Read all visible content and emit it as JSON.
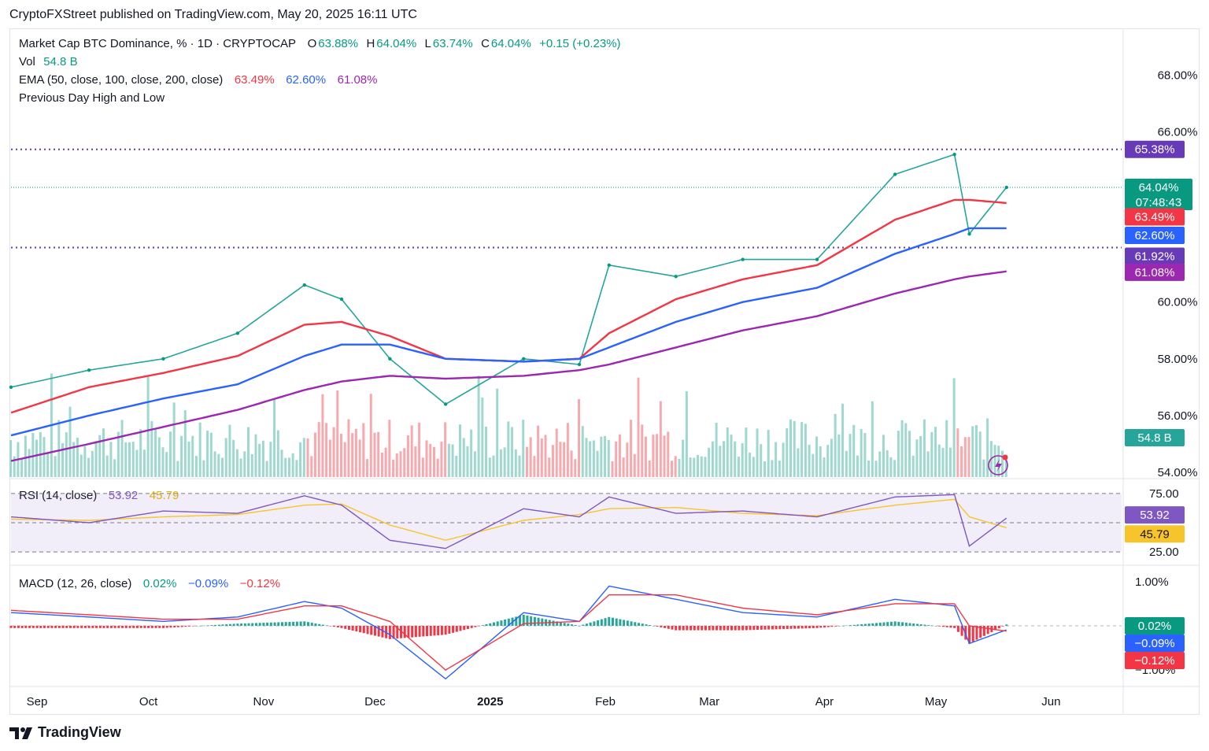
{
  "header": {
    "publisher": "CryptoFXStreet published on TradingView.com, May 20, 2025 16:11 UTC"
  },
  "legend": {
    "symbol": "Market Cap BTC Dominance, % · 1D · CRYPTOCAP",
    "o_label": "O",
    "o": "63.88%",
    "h_label": "H",
    "h": "64.04%",
    "l_label": "L",
    "l": "63.74%",
    "c_label": "C",
    "c": "64.04%",
    "change": "+0.15 (+0.23%)",
    "vol_label": "Vol",
    "vol": "54.8 B",
    "ema_label": "EMA (50, close, 100, close, 200, close)",
    "ema50": "63.49%",
    "ema100": "62.60%",
    "ema200": "61.08%",
    "pdhl_label": "Previous Day High and Low"
  },
  "rsi": {
    "label": "RSI (14, close)",
    "value": "53.92",
    "ma": "45.79",
    "ticks": [
      "75.00",
      "25.00"
    ]
  },
  "macd": {
    "label": "MACD (12, 26, close)",
    "hist": "0.02%",
    "macd": "−0.09%",
    "signal": "−0.12%",
    "ticks": [
      "1.00%",
      "−1.00%"
    ]
  },
  "price_axis": {
    "ticks": [
      "68.00%",
      "66.00%",
      "60.00%",
      "58.00%",
      "56.00%",
      "54.00%"
    ]
  },
  "price_badges": {
    "high": "65.38%",
    "last": "64.04%",
    "countdown": "07:48:43",
    "ema50": "63.49%",
    "ema100": "62.60%",
    "low": "61.92%",
    "ema200": "61.08%",
    "vol": "54.8 B"
  },
  "time_axis": [
    "Sep",
    "Oct",
    "Nov",
    "Dec",
    "2025",
    "Feb",
    "Mar",
    "Apr",
    "May",
    "Jun"
  ],
  "brand": {
    "name": "TradingView"
  },
  "colors": {
    "up": "#089981",
    "down": "#f23645",
    "ema50": "#f23645",
    "ema100": "#2962ff",
    "ema200": "#9c27b0",
    "rsi": "#7e57c2",
    "rsi_ma": "#f7c52b",
    "level": "#673ab7"
  },
  "chart_data": {
    "type": "line",
    "title": "Market Cap BTC Dominance, % · 1D · CRYPTOCAP",
    "ylim": [
      53.5,
      69.2
    ],
    "levels": {
      "previous_day_high": 65.38,
      "previous_day_low": 61.92,
      "last": 64.04
    },
    "x": [
      "2024-08-25",
      "2024-09-15",
      "2024-10-05",
      "2024-10-25",
      "2024-11-12",
      "2024-11-22",
      "2024-12-05",
      "2024-12-20",
      "2025-01-10",
      "2025-01-25",
      "2025-02-02",
      "2025-02-20",
      "2025-03-10",
      "2025-03-30",
      "2025-04-20",
      "2025-05-06",
      "2025-05-10",
      "2025-05-20"
    ],
    "series": [
      {
        "name": "Market Cap BTC Dominance",
        "values": [
          57.0,
          57.6,
          58.0,
          58.9,
          60.6,
          60.1,
          58.0,
          56.4,
          58.0,
          57.8,
          61.3,
          60.9,
          61.5,
          61.5,
          64.5,
          65.2,
          62.4,
          64.04
        ]
      },
      {
        "name": "EMA 50",
        "values": [
          56.1,
          57.0,
          57.5,
          58.1,
          59.2,
          59.3,
          58.8,
          58.0,
          57.9,
          58.0,
          58.9,
          60.1,
          60.8,
          61.3,
          62.9,
          63.6,
          63.6,
          63.49
        ]
      },
      {
        "name": "EMA 100",
        "values": [
          55.3,
          56.0,
          56.6,
          57.1,
          58.1,
          58.5,
          58.5,
          58.0,
          57.9,
          58.0,
          58.4,
          59.3,
          60.0,
          60.5,
          61.7,
          62.4,
          62.6,
          62.6
        ]
      },
      {
        "name": "EMA 200",
        "values": [
          54.4,
          55.0,
          55.6,
          56.2,
          56.9,
          57.2,
          57.4,
          57.3,
          57.4,
          57.6,
          57.8,
          58.4,
          59.0,
          59.5,
          60.3,
          60.8,
          60.9,
          61.08
        ]
      }
    ],
    "rsi": {
      "name": "RSI",
      "ylim": [
        15,
        85
      ],
      "bands": [
        25,
        75
      ],
      "values": [
        55,
        50,
        60,
        58,
        73,
        65,
        35,
        28,
        62,
        55,
        72,
        58,
        60,
        55,
        72,
        74,
        30,
        53.92
      ],
      "ma_values": [
        53,
        52,
        55,
        57,
        65,
        66,
        48,
        35,
        52,
        57,
        62,
        63,
        58,
        56,
        65,
        70,
        55,
        45.79
      ]
    },
    "macd": {
      "name": "MACD",
      "ylim": [
        -1.3,
        1.3
      ],
      "macd_values": [
        0.3,
        0.2,
        0.1,
        0.2,
        0.55,
        0.4,
        -0.2,
        -1.2,
        0.3,
        0.1,
        0.9,
        0.6,
        0.3,
        0.2,
        0.6,
        0.45,
        -0.4,
        -0.09
      ],
      "signal_values": [
        0.35,
        0.25,
        0.15,
        0.15,
        0.45,
        0.45,
        0.1,
        -1.0,
        0.05,
        0.1,
        0.7,
        0.7,
        0.4,
        0.25,
        0.5,
        0.5,
        0.0,
        -0.12
      ]
    }
  }
}
